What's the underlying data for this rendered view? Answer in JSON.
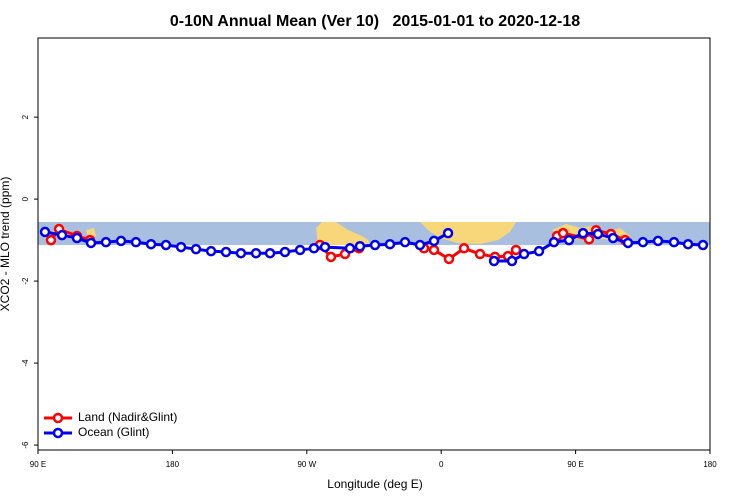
{
  "chart_data": {
    "type": "line",
    "title": "0-10N Annual Mean (Ver 10)   2015-01-01 to 2020-12-18",
    "x_label": "Longitude (deg E)",
    "y_label": "XCO2 - MLO trend (ppm)",
    "xlim": [
      90,
      540
    ],
    "ylim": [
      -6.12,
      3.93
    ],
    "xticks": [
      {
        "value": 90,
        "label": "90 E"
      },
      {
        "value": 180,
        "label": "180"
      },
      {
        "value": 270,
        "label": "90 W"
      },
      {
        "value": 360,
        "label": "0"
      },
      {
        "value": 450,
        "label": "90 E"
      },
      {
        "value": 540,
        "label": "180"
      }
    ],
    "yticks": [
      -6,
      -4,
      -2,
      0,
      2
    ],
    "legend": "bottom-left",
    "series": [
      {
        "name": "Land (Nadir&Glint)",
        "color": "#ff0000",
        "x": [
          98.7,
          104.1,
          116.1,
          124.8,
          200,
          278.8,
          286.2,
          295.6,
          305.0,
          330,
          348.5,
          355.2,
          365.2,
          375.3,
          386.0,
          396.0,
          404.7,
          410.1,
          420,
          437.6,
          441.6,
          459.0,
          463.7,
          473.7,
          483.1
        ],
        "values": [
          -1.0,
          -0.73,
          -0.9,
          -1.0,
          null,
          -1.12,
          -1.41,
          -1.34,
          -1.2,
          null,
          -1.2,
          -1.24,
          -1.46,
          -1.2,
          -1.34,
          -1.41,
          -1.39,
          -1.24,
          null,
          -0.9,
          -0.83,
          -0.98,
          -0.76,
          -0.85,
          -1.0
        ]
      },
      {
        "name": "Ocean (Glint)",
        "color": "#0000ee",
        "x": [
          94.7,
          106.1,
          116.1,
          125.5,
          135.5,
          145.6,
          155.6,
          165.7,
          175.7,
          185.8,
          195.8,
          205.9,
          215.9,
          225.9,
          236.0,
          245.4,
          255.4,
          265.5,
          274.8,
          282.2,
          298.9,
          305.6,
          315.7,
          325.7,
          335.8,
          345.8,
          355.2,
          364.6,
          380,
          395.4,
          407.4,
          415.5,
          425.5,
          435.5,
          445.6,
          455.0,
          465.0,
          475.1,
          485.1,
          495.1,
          505.2,
          515.9,
          525.3,
          535.3
        ],
        "values": [
          -0.8,
          -0.88,
          -0.95,
          -1.07,
          -1.05,
          -1.02,
          -1.05,
          -1.1,
          -1.12,
          -1.17,
          -1.22,
          -1.27,
          -1.29,
          -1.32,
          -1.32,
          -1.32,
          -1.29,
          -1.24,
          -1.2,
          -1.17,
          -1.2,
          -1.15,
          -1.12,
          -1.1,
          -1.05,
          -1.12,
          -1.02,
          -0.83,
          null,
          -1.51,
          -1.51,
          -1.34,
          -1.27,
          -1.05,
          -1.0,
          -0.83,
          -0.85,
          -0.95,
          -1.07,
          -1.05,
          -1.02,
          -1.05,
          -1.1,
          -1.12
        ]
      }
    ]
  }
}
